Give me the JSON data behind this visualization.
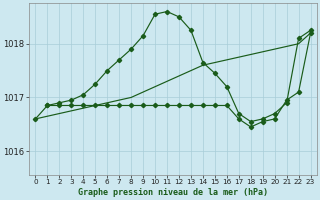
{
  "background_color": "#cde8f0",
  "grid_color": "#a8cdd8",
  "line_color": "#1a5c1a",
  "title": "Graphe pression niveau de la mer (hPa)",
  "yticks": [
    1016,
    1017,
    1018
  ],
  "ylim": [
    1015.55,
    1018.75
  ],
  "xlim": [
    -0.5,
    23.5
  ],
  "hours": [
    0,
    1,
    2,
    3,
    4,
    5,
    6,
    7,
    8,
    9,
    10,
    11,
    12,
    13,
    14,
    15,
    16,
    17,
    18,
    19,
    20,
    21,
    22,
    23
  ],
  "curve1_x": [
    0,
    1,
    2,
    3,
    4,
    5,
    6,
    7,
    8,
    9,
    10,
    11,
    12,
    13,
    14,
    15,
    16,
    17,
    18,
    19,
    20,
    21,
    22,
    23
  ],
  "curve1_y": [
    1016.6,
    1016.65,
    1016.7,
    1016.75,
    1016.8,
    1016.85,
    1016.9,
    1016.95,
    1017.0,
    1017.1,
    1017.2,
    1017.3,
    1017.4,
    1017.5,
    1017.6,
    1017.65,
    1017.7,
    1017.75,
    1017.8,
    1017.85,
    1017.9,
    1017.95,
    1018.0,
    1018.2
  ],
  "curve2_x": [
    0,
    1,
    2,
    3,
    4,
    5,
    6,
    7,
    8,
    9,
    10,
    11,
    12,
    13,
    14,
    15,
    16,
    17,
    18,
    19,
    20,
    21,
    22,
    23
  ],
  "curve2_y": [
    1016.6,
    1016.85,
    1016.9,
    1016.95,
    1017.05,
    1017.25,
    1017.5,
    1017.7,
    1017.9,
    1018.15,
    1018.55,
    1018.6,
    1018.5,
    1018.25,
    1017.65,
    1017.45,
    1017.2,
    1016.7,
    1016.55,
    1016.6,
    1016.7,
    1016.9,
    1018.1,
    1018.25
  ],
  "curve3_x": [
    1,
    2,
    3,
    4,
    5,
    6,
    7,
    8,
    9,
    10,
    11,
    12,
    13,
    14,
    15,
    16,
    17,
    18,
    19,
    20,
    21,
    22,
    23
  ],
  "curve3_y": [
    1016.85,
    1016.85,
    1016.85,
    1016.85,
    1016.85,
    1016.85,
    1016.85,
    1016.85,
    1016.85,
    1016.85,
    1016.85,
    1016.85,
    1016.85,
    1016.85,
    1016.85,
    1016.85,
    1016.6,
    1016.45,
    1016.55,
    1016.6,
    1016.95,
    1017.1,
    1018.2
  ]
}
